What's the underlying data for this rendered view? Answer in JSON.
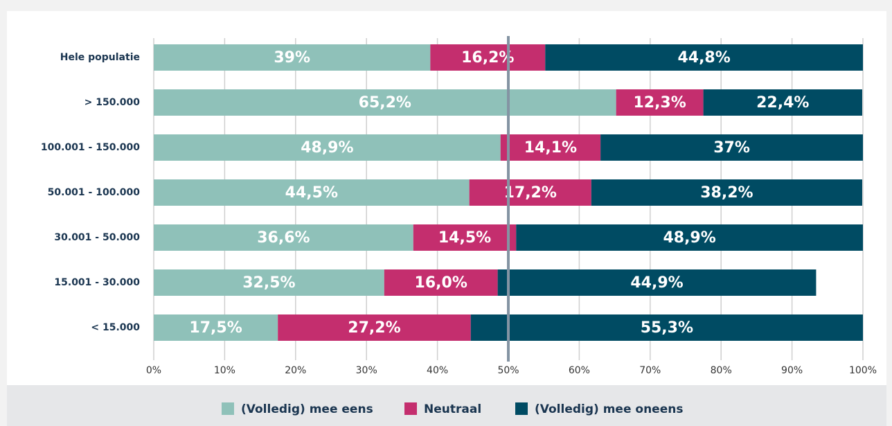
{
  "chart_data": {
    "type": "stacked_barh",
    "categories": [
      "Hele populatie",
      "> 150.000",
      "100.001 - 150.000",
      "50.001 - 100.000",
      "30.001 - 50.000",
      "15.001 - 30.000",
      "< 15.000"
    ],
    "series": [
      {
        "name": "(Volledig) mee eens",
        "color": "#8fc1b9",
        "values": [
          39,
          65.2,
          48.9,
          44.5,
          36.6,
          32.5,
          17.5
        ],
        "value_labels": [
          "39%",
          "65,2%",
          "48,9%",
          "44,5%",
          "36,6%",
          "32,5%",
          "17,5%"
        ]
      },
      {
        "name": "Neutraal",
        "color": "#c42e6e",
        "values": [
          16.2,
          12.3,
          14.1,
          17.2,
          14.5,
          16.0,
          27.2
        ],
        "value_labels": [
          "16,2%",
          "12,3%",
          "14,1%",
          "17,2%",
          "14,5%",
          "16,0%",
          "27,2%"
        ]
      },
      {
        "name": "(Volledig) mee oneens",
        "color": "#004b63",
        "values": [
          44.8,
          22.4,
          37,
          38.2,
          48.9,
          44.9,
          55.3
        ],
        "value_labels": [
          "44,8%",
          "22,4%",
          "37%",
          "38,2%",
          "48,9%",
          "44,9%",
          "55,3%"
        ]
      }
    ],
    "xlim": [
      0,
      100
    ],
    "xticks": [
      {
        "value": 0,
        "label": "0%"
      },
      {
        "value": 10,
        "label": "10%"
      },
      {
        "value": 20,
        "label": "20%"
      },
      {
        "value": 30,
        "label": "30%"
      },
      {
        "value": 40,
        "label": "40%"
      },
      {
        "value": 50,
        "label": "50%"
      },
      {
        "value": 60,
        "label": "60%"
      },
      {
        "value": 70,
        "label": "70%"
      },
      {
        "value": 80,
        "label": "80%"
      },
      {
        "value": 90,
        "label": "90%"
      },
      {
        "value": 100,
        "label": "100%"
      }
    ],
    "reference_line": 50,
    "grid": true,
    "legend": "bottom"
  }
}
